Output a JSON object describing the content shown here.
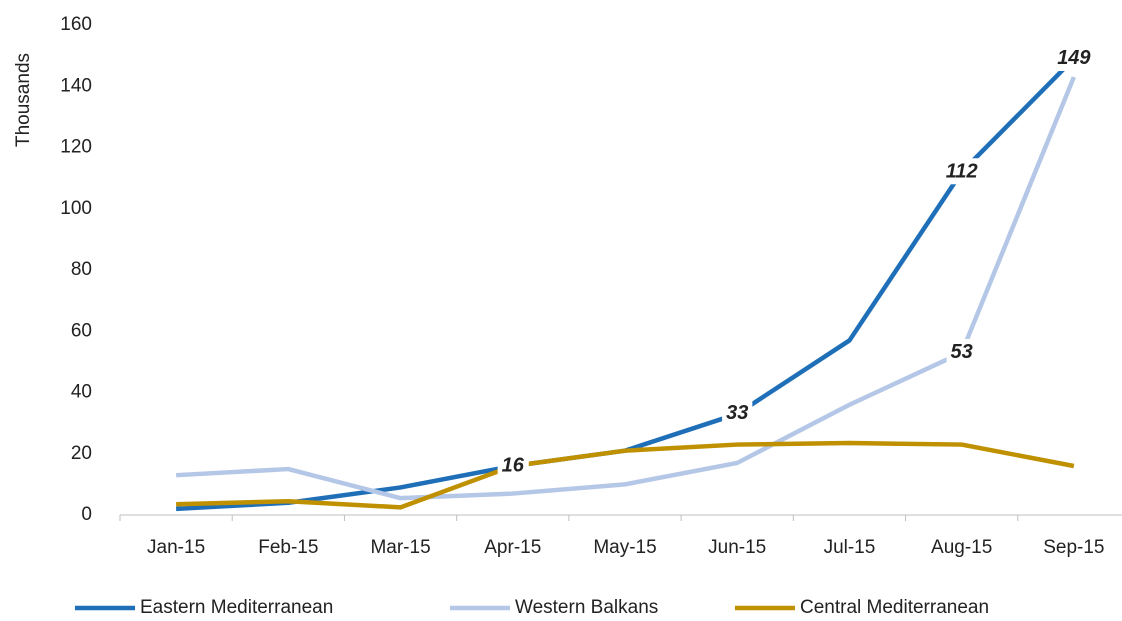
{
  "chart_data": {
    "type": "line",
    "y_label": "Thousands",
    "categories": [
      "Jan-15",
      "Feb-15",
      "Mar-15",
      "Apr-15",
      "May-15",
      "Jun-15",
      "Jul-15",
      "Aug-15",
      "Sep-15"
    ],
    "series": [
      {
        "name": "Eastern Mediterranean",
        "color": "#1f6fb8",
        "values": [
          2,
          4,
          9,
          16,
          21,
          33,
          57,
          112,
          149
        ],
        "value_labels": [
          null,
          null,
          null,
          "16",
          null,
          "33",
          null,
          "112",
          "149"
        ]
      },
      {
        "name": "Western Balkans",
        "color": "#b4c7e7",
        "values": [
          13,
          15,
          5.5,
          7,
          10,
          17,
          36,
          53,
          143
        ],
        "value_labels": [
          null,
          null,
          null,
          null,
          null,
          null,
          null,
          "53",
          null
        ]
      },
      {
        "name": "Central Mediterranean",
        "color": "#bf9000",
        "values": [
          3.5,
          4.5,
          2.5,
          16,
          21,
          23,
          23.5,
          23,
          16
        ]
      }
    ],
    "ylim": [
      0,
      160
    ],
    "yticks": [
      0,
      20,
      40,
      60,
      80,
      100,
      120,
      140,
      160
    ],
    "grid": false,
    "legend": "bottom"
  }
}
